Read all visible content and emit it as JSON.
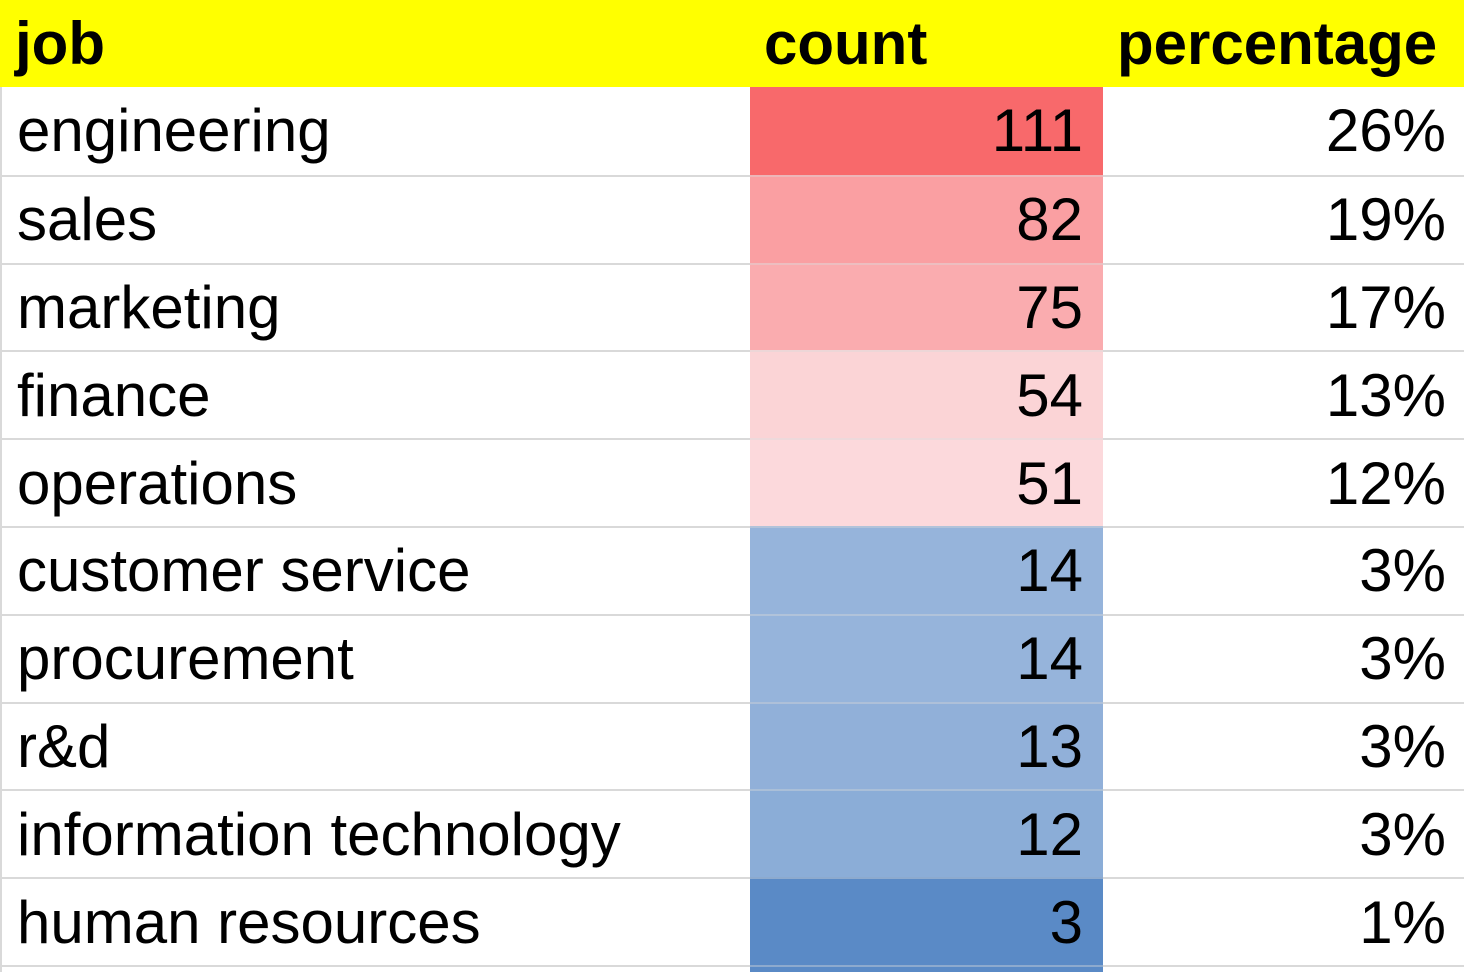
{
  "table": {
    "columns": [
      {
        "key": "job",
        "label": "job"
      },
      {
        "key": "count",
        "label": "count"
      },
      {
        "key": "percentage",
        "label": "percentage"
      }
    ],
    "rows": [
      {
        "job": "engineering",
        "count": "111",
        "percentage": "26%",
        "count_bg": "#F8696B"
      },
      {
        "job": "sales",
        "count": "82",
        "percentage": "19%",
        "count_bg": "#FA9FA2"
      },
      {
        "job": "marketing",
        "count": "75",
        "percentage": "17%",
        "count_bg": "#FAACAF"
      },
      {
        "job": "finance",
        "count": "54",
        "percentage": "13%",
        "count_bg": "#FBD4D6"
      },
      {
        "job": "operations",
        "count": "51",
        "percentage": "12%",
        "count_bg": "#FCD9DC"
      },
      {
        "job": "customer service",
        "count": "14",
        "percentage": "3%",
        "count_bg": "#96B4DB"
      },
      {
        "job": "procurement",
        "count": "14",
        "percentage": "3%",
        "count_bg": "#96B4DB"
      },
      {
        "job": "r&d",
        "count": "13",
        "percentage": "3%",
        "count_bg": "#91B0D9"
      },
      {
        "job": "information technology",
        "count": "12",
        "percentage": "3%",
        "count_bg": "#8BADD7"
      },
      {
        "job": "human resources",
        "count": "3",
        "percentage": "1%",
        "count_bg": "#5A8AC6"
      }
    ],
    "partial_row": {
      "count_bg": "#5A8AC6"
    },
    "colors": {
      "header_bg": "#FFFF00",
      "gridline": "#D9D9D9",
      "text": "#000000",
      "scale_max_red": "#F8696B",
      "scale_mid_white": "#FCFCFF",
      "scale_min_blue": "#5A8AC6"
    }
  },
  "chart_data": {
    "type": "table",
    "columns": [
      "job",
      "count",
      "percentage"
    ],
    "rows": [
      [
        "engineering",
        111,
        "26%"
      ],
      [
        "sales",
        82,
        "19%"
      ],
      [
        "marketing",
        75,
        "17%"
      ],
      [
        "finance",
        54,
        "13%"
      ],
      [
        "operations",
        51,
        "12%"
      ],
      [
        "customer service",
        14,
        "3%"
      ],
      [
        "procurement",
        14,
        "3%"
      ],
      [
        "r&d",
        13,
        "3%"
      ],
      [
        "information technology",
        12,
        "3%"
      ],
      [
        "human resources",
        3,
        "1%"
      ]
    ],
    "layout_hints": {
      "header_fill": "#FFFF00",
      "count_column_conditional_format": "3-color scale, max 111 = #F8696B (red), min 3 = #5A8AC6 (blue)",
      "count_and_percentage_alignment": "right",
      "job_alignment": "left"
    }
  }
}
